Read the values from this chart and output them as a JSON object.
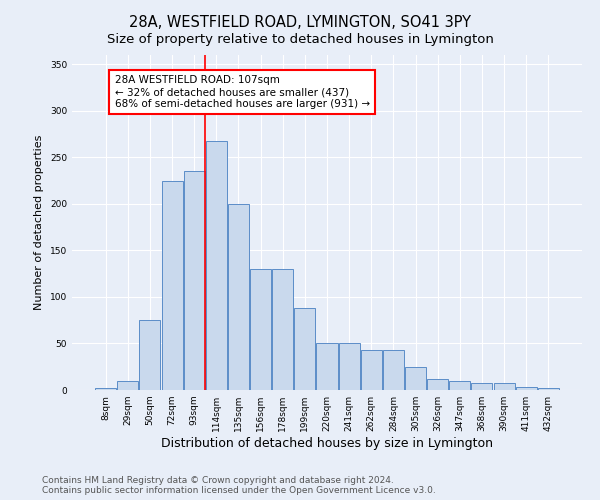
{
  "title": "28A, WESTFIELD ROAD, LYMINGTON, SO41 3PY",
  "subtitle": "Size of property relative to detached houses in Lymington",
  "xlabel": "Distribution of detached houses by size in Lymington",
  "ylabel": "Number of detached properties",
  "categories": [
    "8sqm",
    "29sqm",
    "50sqm",
    "72sqm",
    "93sqm",
    "114sqm",
    "135sqm",
    "156sqm",
    "178sqm",
    "199sqm",
    "220sqm",
    "241sqm",
    "262sqm",
    "284sqm",
    "305sqm",
    "326sqm",
    "347sqm",
    "368sqm",
    "390sqm",
    "411sqm",
    "432sqm"
  ],
  "bar_values": [
    2,
    10,
    75,
    225,
    235,
    268,
    200,
    130,
    130,
    88,
    50,
    50,
    43,
    43,
    25,
    12,
    10,
    8,
    7,
    3,
    2
  ],
  "bar_color": "#c9d9ed",
  "bar_edge_color": "#5b8dc8",
  "annotation_text": "28A WESTFIELD ROAD: 107sqm\n← 32% of detached houses are smaller (437)\n68% of semi-detached houses are larger (931) →",
  "annotation_box_color": "white",
  "annotation_box_edge_color": "red",
  "vline_color": "red",
  "vline_x_index": 4.5,
  "ylim": [
    0,
    360
  ],
  "yticks": [
    0,
    50,
    100,
    150,
    200,
    250,
    300,
    350
  ],
  "background_color": "#e8eef8",
  "footer_line1": "Contains HM Land Registry data © Crown copyright and database right 2024.",
  "footer_line2": "Contains public sector information licensed under the Open Government Licence v3.0.",
  "title_fontsize": 10.5,
  "subtitle_fontsize": 9.5,
  "xlabel_fontsize": 9,
  "ylabel_fontsize": 8,
  "tick_fontsize": 6.5,
  "annotation_fontsize": 7.5,
  "footer_fontsize": 6.5
}
